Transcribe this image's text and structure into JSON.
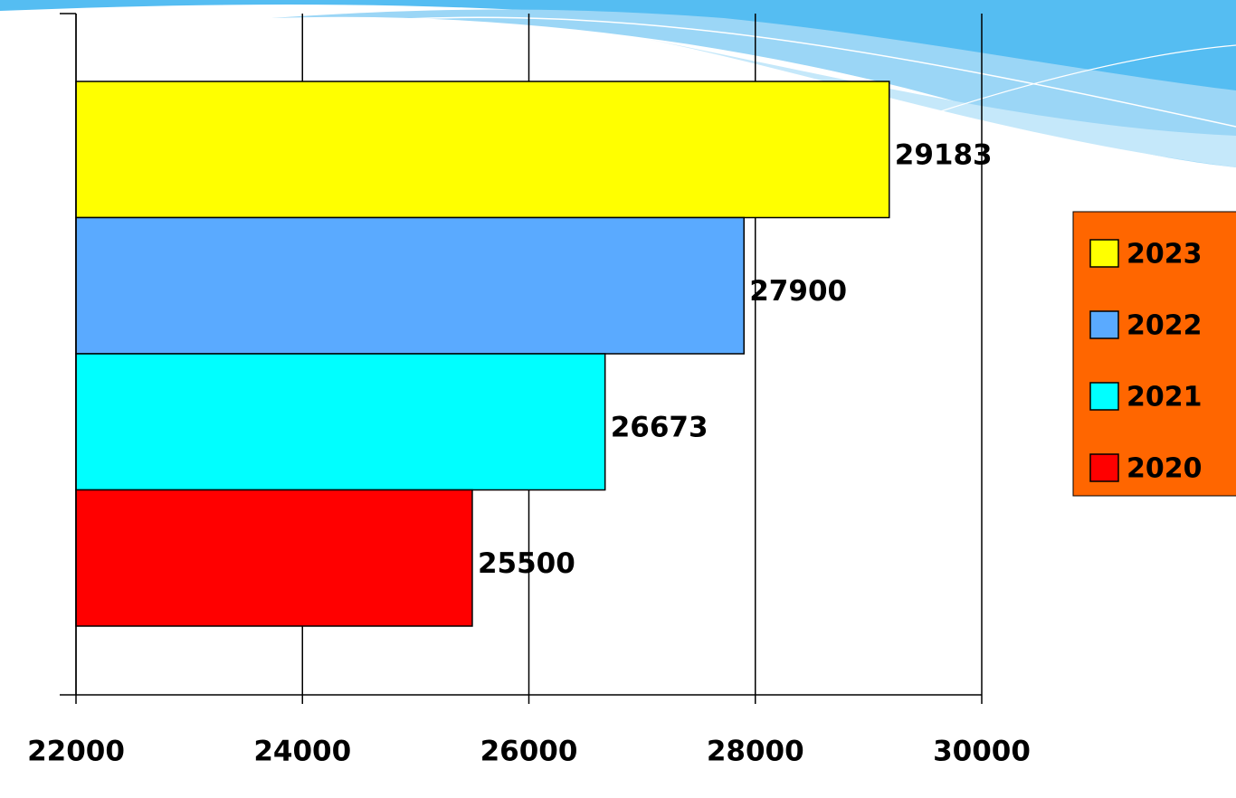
{
  "chart_data": {
    "type": "bar",
    "orientation": "horizontal",
    "categories": [
      null
    ],
    "series": [
      {
        "name": "2023",
        "color": "#ffff00",
        "values": [
          29183
        ]
      },
      {
        "name": "2022",
        "color": "#5aaaff",
        "values": [
          27900
        ]
      },
      {
        "name": "2021",
        "color": "#00ffff",
        "values": [
          26673
        ]
      },
      {
        "name": "2020",
        "color": "#ff0000",
        "values": [
          25500
        ]
      }
    ],
    "xlim": [
      22000,
      30000
    ],
    "xticks": [
      22000,
      24000,
      26000,
      28000,
      30000
    ],
    "grid": true,
    "legend": "right",
    "legend_color": "#ff6600"
  }
}
